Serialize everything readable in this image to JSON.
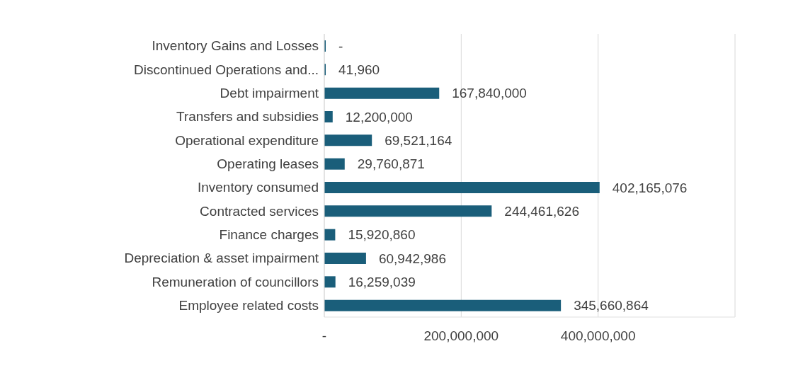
{
  "chart_data": {
    "type": "bar",
    "orientation": "horizontal",
    "categories": [
      "Inventory Gains and Losses",
      "Discontinued Operations and...",
      "Debt impairment",
      "Transfers and subsidies",
      "Operational expenditure",
      "Operating leases",
      "Inventory consumed",
      "Contracted services",
      "Finance charges",
      "Depreciation & asset impairment",
      "Remuneration of councillors",
      "Employee related costs"
    ],
    "values": [
      0,
      41960,
      167840000,
      12200000,
      69521164,
      29760871,
      402165076,
      244461626,
      15920860,
      60942986,
      16259039,
      345660864
    ],
    "value_labels": [
      "-",
      "41,960",
      "167,840,000",
      "12,200,000",
      "69,521,164",
      "29,760,871",
      "402,165,076",
      "244,461,626",
      "15,920,860",
      "60,942,986",
      "16,259,039",
      "345,660,864"
    ],
    "color": "#1a5e7a",
    "xlim": [
      0,
      600000000
    ],
    "xticks": [
      {
        "value": 0,
        "label": "-"
      },
      {
        "value": 200000000,
        "label": "200,000,000"
      },
      {
        "value": 400000000,
        "label": "400,000,000"
      }
    ],
    "grid": "x"
  }
}
